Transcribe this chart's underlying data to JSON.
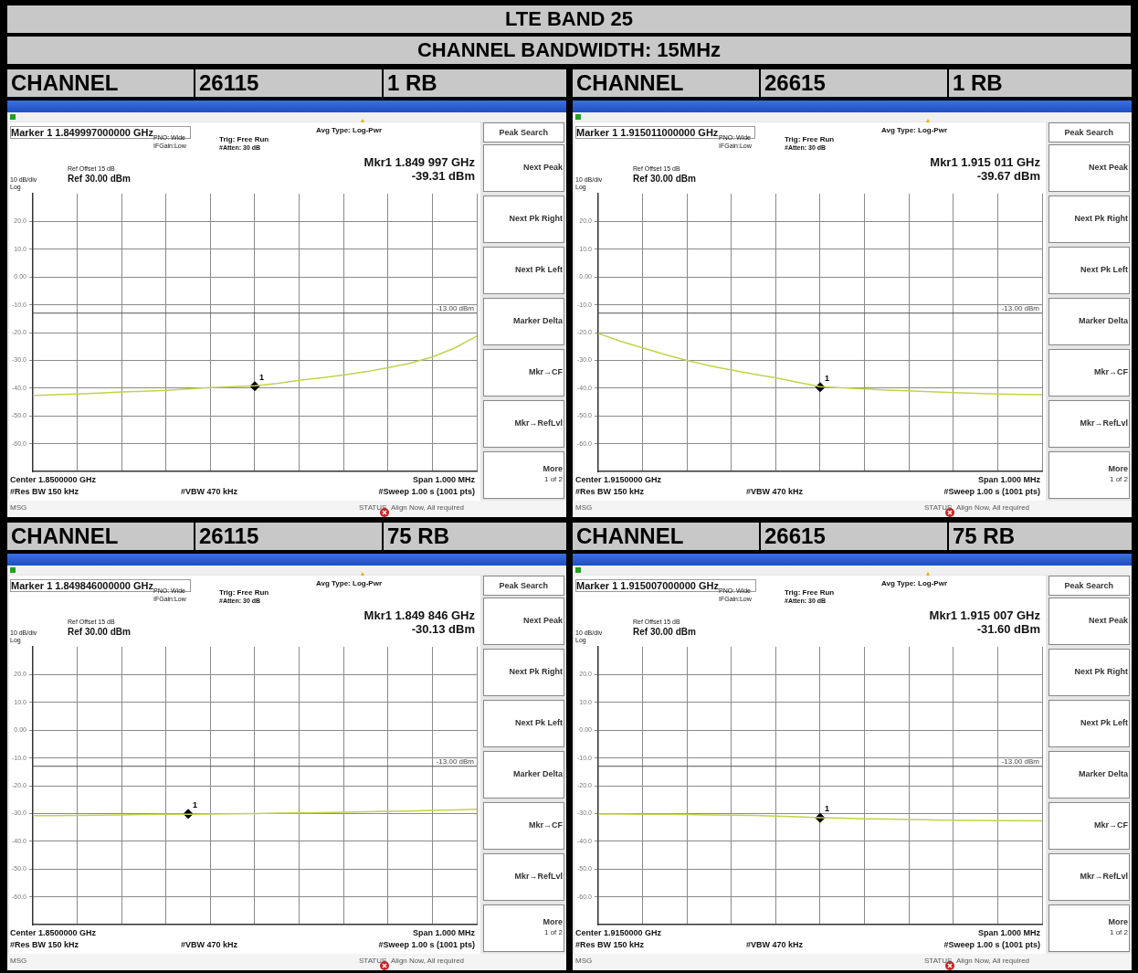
{
  "chart_data": [
    {
      "type": "other",
      "title": "LTE BAND 25",
      "subtitle": "CHANNEL BANDWIDTH: 15MHz"
    },
    {
      "type": "line",
      "grid": true,
      "tick_labels": "y",
      "marker": "none",
      "categories": [
        null,
        null,
        null,
        null,
        null,
        null,
        null,
        null,
        null,
        null,
        null,
        null,
        null,
        null,
        null,
        null,
        null,
        null,
        null,
        null,
        null
      ],
      "ylim": [
        -70,
        30
      ],
      "yticks": [
        {
          "value": 20,
          "label": "20.0"
        },
        {
          "value": 10,
          "label": "10.0"
        },
        {
          "value": 0,
          "label": "0.00"
        },
        {
          "value": -10,
          "label": "-10.0"
        },
        {
          "value": -20,
          "label": "-20.0"
        },
        {
          "value": -30,
          "label": "-30.0"
        },
        {
          "value": -40,
          "label": "-40.0"
        },
        {
          "value": -50,
          "label": "-50.0"
        },
        {
          "value": -60,
          "label": "-60.0"
        }
      ],
      "ref_lines": [
        {
          "axis": "y",
          "value": -13,
          "label": "-13.00 dBm",
          "color": "#555555"
        }
      ],
      "series": [
        {
          "type": "line",
          "color": "#c2d34a",
          "values": [
            -42.7,
            -42.4,
            -42.1,
            -41.8,
            -41.4,
            -41.1,
            -40.8,
            -40.3,
            -39.8,
            -39.5,
            -39.2,
            -38.3,
            -37.2,
            -36.3,
            -35.3,
            -34.1,
            -32.7,
            -31.0,
            -28.8,
            -25.6,
            -21.3
          ]
        },
        {
          "type": "scatter",
          "color": "#000000",
          "marker": "diamond",
          "values": [
            null,
            null,
            null,
            null,
            null,
            null,
            null,
            null,
            null,
            null,
            -39.31,
            null,
            null,
            null,
            null,
            null,
            null,
            null,
            null,
            null,
            null
          ]
        }
      ],
      "annotations": [
        "CHANNEL",
        "26115",
        "1 RB",
        "Marker 1 1.849997000000 GHz",
        "PNO: Wide",
        "IFGain:Low",
        "Trig: Free Run",
        "#Atten: 30 dB",
        "Avg Type: Log-Pwr",
        "Ref Offset 15 dB",
        "10 dB/div",
        "Ref 30.00 dBm",
        "Log",
        "Mkr1 1.849 997 GHz",
        "-39.31 dBm",
        "Center 1.8500000 GHz",
        "#Res BW 150 kHz",
        "#VBW 470 kHz",
        "Span 1.000 MHz",
        "#Sweep 1.00 s (1001 pts)",
        "MSG",
        "STATUS",
        "Align Now, All required",
        "Peak Search",
        "Next Peak",
        "Next Pk Right",
        "Next Pk Left",
        "Marker Delta",
        "Mkr→CF",
        "Mkr→RefLvl",
        "More",
        "1 of 2",
        "1"
      ]
    },
    {
      "type": "line",
      "grid": true,
      "tick_labels": "y",
      "marker": "none",
      "categories": [
        null,
        null,
        null,
        null,
        null,
        null,
        null,
        null,
        null,
        null,
        null,
        null,
        null,
        null,
        null,
        null,
        null,
        null,
        null,
        null,
        null
      ],
      "ylim": [
        -70,
        30
      ],
      "yticks": [
        {
          "value": 20,
          "label": "20.0"
        },
        {
          "value": 10,
          "label": "10.0"
        },
        {
          "value": 0,
          "label": "0.00"
        },
        {
          "value": -10,
          "label": "-10.0"
        },
        {
          "value": -20,
          "label": "-20.0"
        },
        {
          "value": -30,
          "label": "-30.0"
        },
        {
          "value": -40,
          "label": "-40.0"
        },
        {
          "value": -50,
          "label": "-50.0"
        },
        {
          "value": -60,
          "label": "-60.0"
        }
      ],
      "ref_lines": [
        {
          "axis": "y",
          "value": -13,
          "label": "-13.00 dBm",
          "color": "#555555"
        }
      ],
      "series": [
        {
          "type": "line",
          "color": "#c2d34a",
          "values": [
            -20.3,
            -23.1,
            -25.5,
            -27.9,
            -30.0,
            -31.9,
            -33.5,
            -35.0,
            -36.3,
            -37.9,
            -39.5,
            -39.9,
            -40.3,
            -40.7,
            -41.0,
            -41.3,
            -41.6,
            -41.9,
            -42.1,
            -42.3,
            -42.4
          ]
        },
        {
          "type": "scatter",
          "color": "#000000",
          "marker": "diamond",
          "values": [
            null,
            null,
            null,
            null,
            null,
            null,
            null,
            null,
            null,
            null,
            -39.67,
            null,
            null,
            null,
            null,
            null,
            null,
            null,
            null,
            null,
            null
          ]
        }
      ],
      "annotations": [
        "CHANNEL",
        "26615",
        "1 RB",
        "Marker 1 1.915011000000 GHz",
        "PNO: Wide",
        "IFGain:Low",
        "Trig: Free Run",
        "#Atten: 30 dB",
        "Avg Type: Log-Pwr",
        "Ref Offset 15 dB",
        "10 dB/div",
        "Ref 30.00 dBm",
        "Log",
        "Mkr1 1.915 011 GHz",
        "-39.67 dBm",
        "Center 1.9150000 GHz",
        "#Res BW 150 kHz",
        "#VBW 470 kHz",
        "Span 1.000 MHz",
        "#Sweep 1.00 s (1001 pts)",
        "MSG",
        "STATUS",
        "Align Now, All required",
        "Peak Search",
        "Next Peak",
        "Next Pk Right",
        "Next Pk Left",
        "Marker Delta",
        "Mkr→CF",
        "Mkr→RefLvl",
        "More",
        "1 of 2",
        "1"
      ]
    },
    {
      "type": "line",
      "grid": true,
      "tick_labels": "y",
      "marker": "none",
      "categories": [
        null,
        null,
        null,
        null,
        null,
        null,
        null,
        null,
        null,
        null,
        null,
        null,
        null,
        null,
        null,
        null,
        null,
        null,
        null,
        null,
        null
      ],
      "ylim": [
        -70,
        30
      ],
      "yticks": [
        {
          "value": 20,
          "label": "20.0"
        },
        {
          "value": 10,
          "label": "10.0"
        },
        {
          "value": 0,
          "label": "0.00"
        },
        {
          "value": -10,
          "label": "-10.0"
        },
        {
          "value": -20,
          "label": "-20.0"
        },
        {
          "value": -30,
          "label": "-30.0"
        },
        {
          "value": -40,
          "label": "-40.0"
        },
        {
          "value": -50,
          "label": "-50.0"
        },
        {
          "value": -60,
          "label": "-60.0"
        }
      ],
      "ref_lines": [
        {
          "axis": "y",
          "value": -13,
          "label": "-13.00 dBm",
          "color": "#555555"
        }
      ],
      "series": [
        {
          "type": "line",
          "color": "#c2d34a",
          "values": [
            -30.8,
            -30.8,
            -30.7,
            -30.6,
            -30.5,
            -30.4,
            -30.3,
            -30.3,
            -30.2,
            -30.1,
            -30.0,
            -29.9,
            -29.8,
            -29.7,
            -29.5,
            -29.4,
            -29.2,
            -29.1,
            -28.9,
            -28.7,
            -28.5
          ]
        },
        {
          "type": "scatter",
          "color": "#000000",
          "marker": "diamond",
          "values": [
            null,
            null,
            null,
            null,
            null,
            null,
            null,
            -30.13,
            null,
            null,
            null,
            null,
            null,
            null,
            null,
            null,
            null,
            null,
            null,
            null,
            null
          ]
        }
      ],
      "annotations": [
        "CHANNEL",
        "26115",
        "75 RB",
        "Marker 1 1.849846000000 GHz",
        "PNO: Wide",
        "IFGain:Low",
        "Trig: Free Run",
        "#Atten: 30 dB",
        "Avg Type: Log-Pwr",
        "Ref Offset 15 dB",
        "10 dB/div",
        "Ref 30.00 dBm",
        "Log",
        "Mkr1 1.849 846 GHz",
        "-30.13 dBm",
        "Center 1.8500000 GHz",
        "#Res BW 150 kHz",
        "#VBW 470 kHz",
        "Span 1.000 MHz",
        "#Sweep 1.00 s (1001 pts)",
        "MSG",
        "STATUS",
        "Align Now, All required",
        "Peak Search",
        "Next Peak",
        "Next Pk Right",
        "Next Pk Left",
        "Marker Delta",
        "Mkr→CF",
        "Mkr→RefLvl",
        "More",
        "1 of 2",
        "1"
      ]
    },
    {
      "type": "line",
      "grid": true,
      "tick_labels": "y",
      "marker": "none",
      "categories": [
        null,
        null,
        null,
        null,
        null,
        null,
        null,
        null,
        null,
        null,
        null,
        null,
        null,
        null,
        null,
        null,
        null,
        null,
        null,
        null,
        null
      ],
      "ylim": [
        -70,
        30
      ],
      "yticks": [
        {
          "value": 20,
          "label": "20.0"
        },
        {
          "value": 10,
          "label": "10.0"
        },
        {
          "value": 0,
          "label": "0.00"
        },
        {
          "value": -10,
          "label": "-10.0"
        },
        {
          "value": -20,
          "label": "-20.0"
        },
        {
          "value": -30,
          "label": "-30.0"
        },
        {
          "value": -40,
          "label": "-40.0"
        },
        {
          "value": -50,
          "label": "-50.0"
        },
        {
          "value": -60,
          "label": "-60.0"
        }
      ],
      "ref_lines": [
        {
          "axis": "y",
          "value": -13,
          "label": "-13.00 dBm",
          "color": "#555555"
        }
      ],
      "series": [
        {
          "type": "line",
          "color": "#c2d34a",
          "values": [
            -30.2,
            -30.2,
            -30.3,
            -30.3,
            -30.4,
            -30.5,
            -30.6,
            -30.7,
            -30.9,
            -31.2,
            -31.5,
            -31.7,
            -31.9,
            -32.0,
            -32.2,
            -32.3,
            -32.4,
            -32.5,
            -32.6,
            -32.6,
            -32.7
          ]
        },
        {
          "type": "scatter",
          "color": "#000000",
          "marker": "diamond",
          "values": [
            null,
            null,
            null,
            null,
            null,
            null,
            null,
            null,
            null,
            null,
            -31.6,
            null,
            null,
            null,
            null,
            null,
            null,
            null,
            null,
            null,
            null
          ]
        }
      ],
      "annotations": [
        "CHANNEL",
        "26615",
        "75 RB",
        "Marker 1 1.915007000000 GHz",
        "PNO: Wide",
        "IFGain:Low",
        "Trig: Free Run",
        "#Atten: 30 dB",
        "Avg Type: Log-Pwr",
        "Ref Offset 15 dB",
        "10 dB/div",
        "Ref 30.00 dBm",
        "Log",
        "Mkr1 1.915 007 GHz",
        "-31.60 dBm",
        "Center 1.9150000 GHz",
        "#Res BW 150 kHz",
        "#VBW 470 kHz",
        "Span 1.000 MHz",
        "#Sweep 1.00 s (1001 pts)",
        "MSG",
        "STATUS",
        "Align Now, All required",
        "Peak Search",
        "Next Peak",
        "Next Pk Right",
        "Next Pk Left",
        "Marker Delta",
        "Mkr→CF",
        "Mkr→RefLvl",
        "More",
        "1 of 2",
        "1"
      ]
    }
  ]
}
